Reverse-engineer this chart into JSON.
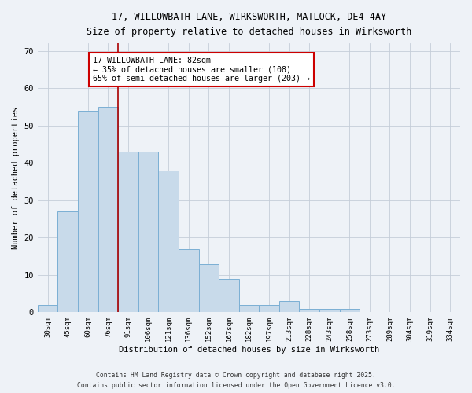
{
  "title_line1": "17, WILLOWBATH LANE, WIRKSWORTH, MATLOCK, DE4 4AY",
  "title_line2": "Size of property relative to detached houses in Wirksworth",
  "xlabel": "Distribution of detached houses by size in Wirksworth",
  "ylabel": "Number of detached properties",
  "categories": [
    "30sqm",
    "45sqm",
    "60sqm",
    "76sqm",
    "91sqm",
    "106sqm",
    "121sqm",
    "136sqm",
    "152sqm",
    "167sqm",
    "182sqm",
    "197sqm",
    "213sqm",
    "228sqm",
    "243sqm",
    "258sqm",
    "273sqm",
    "289sqm",
    "304sqm",
    "319sqm",
    "334sqm"
  ],
  "values": [
    2,
    27,
    54,
    55,
    43,
    43,
    38,
    17,
    13,
    9,
    2,
    2,
    3,
    1,
    1,
    1,
    0,
    0,
    0,
    0,
    0
  ],
  "bar_color": "#c8daea",
  "bar_edge_color": "#7bafd4",
  "vline_x_index": 3,
  "vline_color": "#aa0000",
  "annotation_text": "17 WILLOWBATH LANE: 82sqm\n← 35% of detached houses are smaller (108)\n65% of semi-detached houses are larger (203) →",
  "annotation_box_color": "#ffffff",
  "annotation_box_edge": "#cc0000",
  "ylim": [
    0,
    72
  ],
  "yticks": [
    0,
    10,
    20,
    30,
    40,
    50,
    60,
    70
  ],
  "footer_line1": "Contains HM Land Registry data © Crown copyright and database right 2025.",
  "footer_line2": "Contains public sector information licensed under the Open Government Licence v3.0.",
  "bg_color": "#eef2f7",
  "plot_bg_color": "#eef2f7",
  "grid_color": "#c5cdd8"
}
